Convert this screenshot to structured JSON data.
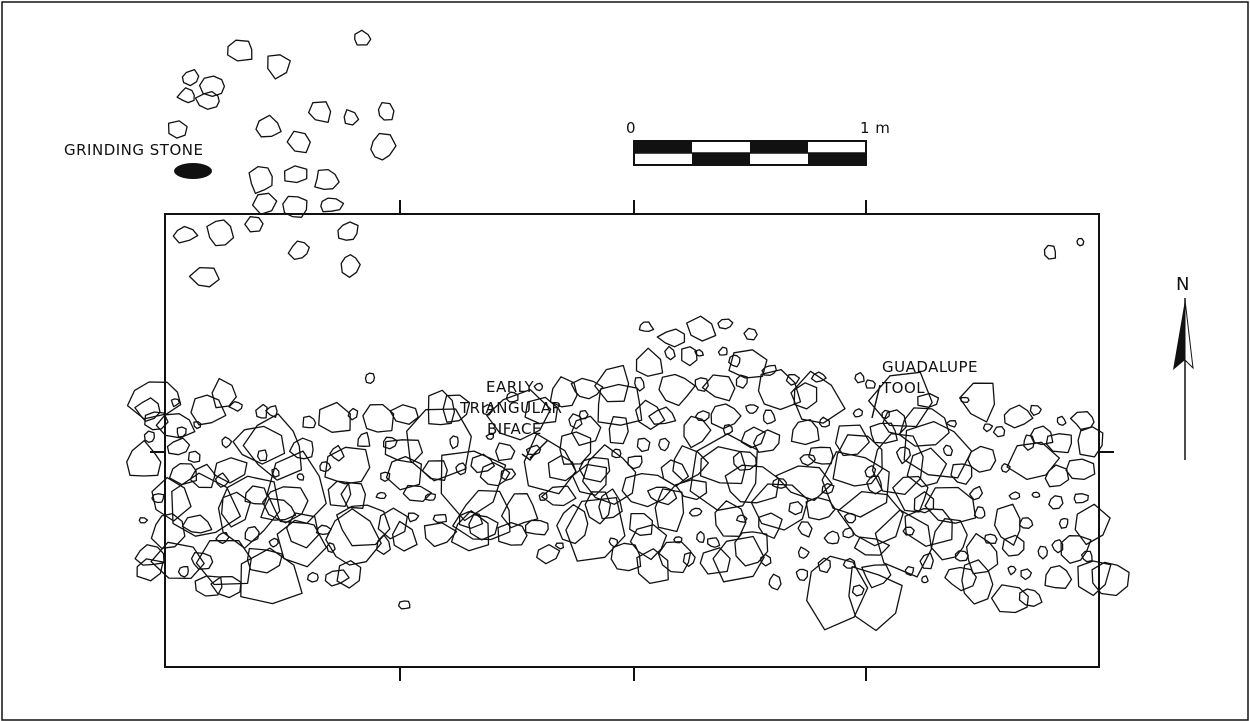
{
  "labels": {
    "grinding_stone": "GRINDING STONE",
    "early_triangular_1": "EARLY",
    "early_triangular_2": "TRIANGULAR",
    "early_triangular_3": "BIFACE",
    "guadalupe_1": "GUADALUPE",
    "guadalupe_2": "TOOL",
    "north": "N",
    "scale_zero": "0",
    "scale_one": "1 m"
  },
  "colors": {
    "ink": "#111111",
    "paper": "#ffffff"
  },
  "scale_bar": {
    "divisions": 8,
    "start_value": 0,
    "end_value": 1,
    "unit": "m"
  },
  "icons": {
    "north_arrow": "north-arrow-icon",
    "grinding_stone_marker": "filled-stone-marker"
  }
}
